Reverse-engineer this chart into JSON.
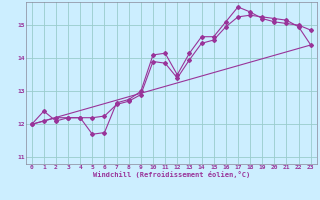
{
  "xlabel": "Windchill (Refroidissement éolien,°C)",
  "background_color": "#cceeff",
  "line_color": "#993399",
  "grid_color": "#99cccc",
  "xlim": [
    -0.5,
    23.5
  ],
  "ylim": [
    10.8,
    15.7
  ],
  "xticks": [
    0,
    1,
    2,
    3,
    4,
    5,
    6,
    7,
    8,
    9,
    10,
    11,
    12,
    13,
    14,
    15,
    16,
    17,
    18,
    19,
    20,
    21,
    22,
    23
  ],
  "yticks": [
    11,
    12,
    13,
    14,
    15
  ],
  "line1_x": [
    0,
    1,
    2,
    3,
    4,
    5,
    6,
    7,
    8,
    9,
    10,
    11,
    12,
    13,
    14,
    15,
    16,
    17,
    18,
    19,
    20,
    21,
    22,
    23
  ],
  "line1_y": [
    12.0,
    12.4,
    12.1,
    12.2,
    12.2,
    11.7,
    11.75,
    12.65,
    12.75,
    13.0,
    14.1,
    14.15,
    13.5,
    14.15,
    14.65,
    14.65,
    15.1,
    15.55,
    15.4,
    15.2,
    15.1,
    15.05,
    15.0,
    14.85
  ],
  "line2_x": [
    0,
    1,
    2,
    3,
    4,
    5,
    6,
    7,
    8,
    9,
    10,
    11,
    12,
    13,
    14,
    15,
    16,
    17,
    18,
    19,
    20,
    21,
    22,
    23
  ],
  "line2_y": [
    12.0,
    12.1,
    12.2,
    12.2,
    12.2,
    12.2,
    12.25,
    12.6,
    12.7,
    12.9,
    13.9,
    13.85,
    13.4,
    13.95,
    14.45,
    14.55,
    14.95,
    15.25,
    15.3,
    15.25,
    15.2,
    15.15,
    14.95,
    14.4
  ],
  "line3_x": [
    0,
    23
  ],
  "line3_y": [
    12.0,
    14.4
  ]
}
